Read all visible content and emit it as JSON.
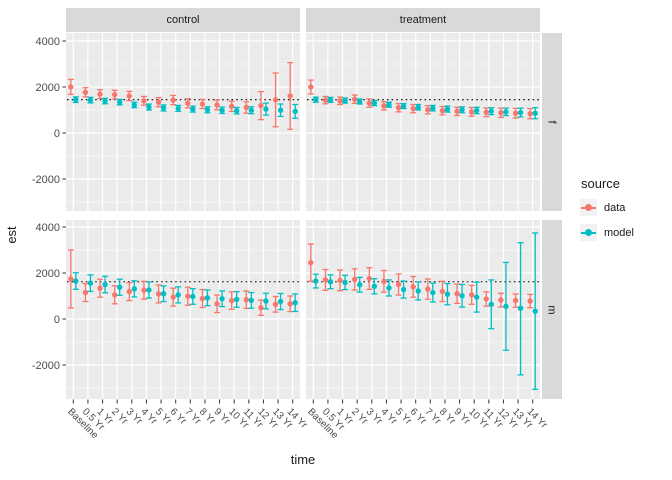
{
  "figure": {
    "background": "#FFFFFF",
    "panel_bg": "#EBEBEB",
    "strip_bg": "#D9D9D9",
    "grid_color": "#FFFFFF",
    "tick_color": "#333333",
    "axis_text_color": "#4D4D4D",
    "axis_title_color": "#1A1A1A",
    "legend_key_bg": "#F2F2F2"
  },
  "chart_data": {
    "type": "scatter",
    "subtype": "pointrange with errorbars, faceted grid 2 cols x 2 rows",
    "title": "",
    "xlabel": "time",
    "ylabel": "est",
    "categories": [
      "Baseline",
      "0.5 Yr",
      "1 Yr",
      "2 Yr",
      "3 Yr",
      "4 Yr",
      "5 Yr",
      "6 Yr",
      "7 Yr",
      "8 Yr",
      "9 Yr",
      "10 Yr",
      "11 Yr",
      "12 Yr",
      "13 Yr",
      "14 Yr"
    ],
    "yticks": [
      -2000,
      0,
      2000,
      4000
    ],
    "ytick_labels": [
      "-2000",
      "0",
      "2000",
      "4000"
    ],
    "yticks_minor": [
      -3000,
      -1000,
      1000,
      3000
    ],
    "ylim": [
      -3400,
      4350
    ],
    "grid": true,
    "facet_cols": [
      "control",
      "treatment"
    ],
    "facet_rows": [
      "f",
      "m"
    ],
    "reference_lines": [
      {
        "row": "f",
        "y": 1450,
        "style": "dotted",
        "color": "#000000"
      },
      {
        "row": "m",
        "y": 1620,
        "style": "dotted",
        "color": "#000000"
      }
    ],
    "legend": {
      "title": "source",
      "position": "right",
      "items": [
        {
          "label": "data",
          "color": "#F8766D"
        },
        {
          "label": "model",
          "color": "#00BFC4"
        }
      ]
    },
    "panels": [
      {
        "col": "control",
        "row": "f",
        "series": [
          {
            "name": "data",
            "color": "#F8766D",
            "values": [
              2000,
              1770,
              1690,
              1670,
              1610,
              1400,
              1340,
              1430,
              1290,
              1260,
              1220,
              1160,
              1110,
              1190,
              1440,
              1610
            ],
            "lower": [
              1680,
              1570,
              1500,
              1480,
              1410,
              1210,
              1140,
              1230,
              1090,
              1060,
              1010,
              940,
              860,
              580,
              270,
              160
            ],
            "upper": [
              2330,
              1970,
              1880,
              1860,
              1810,
              1590,
              1540,
              1630,
              1490,
              1460,
              1430,
              1380,
              1360,
              1800,
              2610,
              3060
            ]
          },
          {
            "name": "model",
            "color": "#00BFC4",
            "values": [
              1450,
              1430,
              1390,
              1340,
              1220,
              1130,
              1090,
              1070,
              1040,
              1010,
              990,
              970,
              990,
              1040,
              990,
              940
            ],
            "lower": [
              1330,
              1310,
              1270,
              1220,
              1100,
              1000,
              960,
              940,
              910,
              880,
              850,
              830,
              840,
              780,
              720,
              640
            ],
            "upper": [
              1570,
              1550,
              1510,
              1460,
              1340,
              1260,
              1220,
              1200,
              1170,
              1140,
              1130,
              1110,
              1140,
              1300,
              1260,
              1240
            ]
          }
        ]
      },
      {
        "col": "treatment",
        "row": "f",
        "series": [
          {
            "name": "data",
            "color": "#F8766D",
            "values": [
              2000,
              1430,
              1400,
              1470,
              1300,
              1180,
              1100,
              1060,
              1010,
              970,
              940,
              920,
              900,
              880,
              860,
              840
            ],
            "lower": [
              1700,
              1270,
              1240,
              1290,
              1120,
              1000,
              920,
              880,
              830,
              790,
              760,
              730,
              710,
              680,
              650,
              620
            ],
            "upper": [
              2300,
              1590,
              1560,
              1650,
              1480,
              1360,
              1280,
              1240,
              1190,
              1150,
              1120,
              1110,
              1090,
              1080,
              1070,
              1060
            ]
          },
          {
            "name": "model",
            "color": "#00BFC4",
            "values": [
              1450,
              1440,
              1420,
              1370,
              1300,
              1230,
              1170,
              1120,
              1080,
              1040,
              1010,
              980,
              950,
              920,
              890,
              860
            ],
            "lower": [
              1340,
              1330,
              1300,
              1260,
              1190,
              1120,
              1060,
              1000,
              960,
              910,
              880,
              840,
              800,
              760,
              700,
              620
            ],
            "upper": [
              1560,
              1550,
              1520,
              1480,
              1410,
              1340,
              1280,
              1240,
              1200,
              1170,
              1140,
              1120,
              1100,
              1080,
              1080,
              1100
            ]
          }
        ]
      },
      {
        "col": "control",
        "row": "m",
        "series": [
          {
            "name": "data",
            "color": "#F8766D",
            "values": [
              1740,
              1150,
              1340,
              1050,
              1190,
              1250,
              1090,
              950,
              990,
              890,
              660,
              800,
              840,
              490,
              640,
              660
            ],
            "lower": [
              480,
              760,
              950,
              660,
              800,
              860,
              700,
              560,
              600,
              500,
              280,
              420,
              460,
              160,
              300,
              320
            ],
            "upper": [
              3000,
              1540,
              1730,
              1440,
              1580,
              1640,
              1480,
              1340,
              1380,
              1280,
              1040,
              1180,
              1220,
              820,
              980,
              1000
            ]
          },
          {
            "name": "model",
            "color": "#00BFC4",
            "values": [
              1650,
              1560,
              1500,
              1380,
              1310,
              1260,
              1100,
              1050,
              980,
              920,
              880,
              850,
              810,
              780,
              760,
              710
            ],
            "lower": [
              1290,
              1200,
              1140,
              1030,
              960,
              910,
              760,
              700,
              640,
              580,
              540,
              510,
              470,
              440,
              410,
              330
            ],
            "upper": [
              2010,
              1920,
              1860,
              1730,
              1660,
              1610,
              1440,
              1400,
              1320,
              1260,
              1220,
              1190,
              1150,
              1120,
              1110,
              1090
            ]
          }
        ]
      },
      {
        "col": "treatment",
        "row": "m",
        "series": [
          {
            "name": "data",
            "color": "#F8766D",
            "values": [
              2450,
              1700,
              1680,
              1720,
              1760,
              1640,
              1500,
              1400,
              1300,
              1200,
              1100,
              1050,
              870,
              820,
              800,
              780
            ],
            "lower": [
              1640,
              1250,
              1230,
              1260,
              1290,
              1170,
              1040,
              950,
              860,
              760,
              680,
              640,
              560,
              520,
              510,
              490
            ],
            "upper": [
              3260,
              2150,
              2130,
              2180,
              2230,
              2110,
              1960,
              1850,
              1740,
              1640,
              1520,
              1460,
              1180,
              1120,
              1090,
              1070
            ]
          },
          {
            "name": "model",
            "color": "#00BFC4",
            "values": [
              1650,
              1620,
              1590,
              1490,
              1420,
              1350,
              1280,
              1220,
              1150,
              1080,
              1010,
              950,
              640,
              550,
              470,
              340
            ],
            "lower": [
              1350,
              1320,
              1280,
              1170,
              1090,
              1000,
              910,
              830,
              740,
              620,
              520,
              300,
              -420,
              -1360,
              -2430,
              -3060
            ],
            "upper": [
              1950,
              1920,
              1900,
              1810,
              1750,
              1700,
              1650,
              1610,
              1560,
              1540,
              1500,
              1600,
              1700,
              2460,
              3320,
              3740
            ]
          }
        ]
      }
    ]
  }
}
